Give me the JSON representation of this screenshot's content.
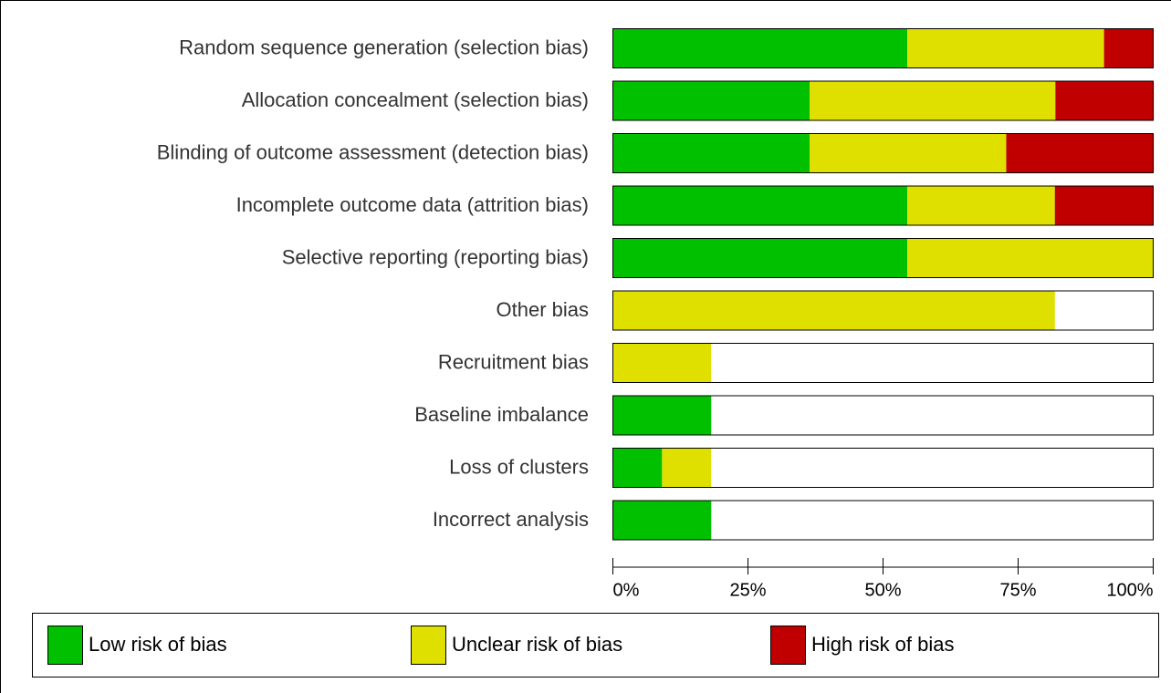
{
  "chart_data": {
    "type": "stacked-bar-horizontal",
    "categories": [
      "Random sequence generation (selection bias)",
      "Allocation concealment (selection bias)",
      "Blinding of outcome assessment (detection bias)",
      "Incomplete outcome data (attrition bias)",
      "Selective reporting (reporting bias)",
      "Other bias",
      "Recruitment bias",
      "Baseline imbalance",
      "Loss of clusters",
      "Incorrect analysis"
    ],
    "series": [
      {
        "name": "Low risk of bias",
        "color": "#00c000",
        "values": [
          54.5,
          36.4,
          36.4,
          54.5,
          54.5,
          0,
          0,
          18.2,
          9.1,
          18.2
        ]
      },
      {
        "name": "Unclear risk of bias",
        "color": "#e0e000",
        "values": [
          36.4,
          45.5,
          36.4,
          27.3,
          45.5,
          81.8,
          18.2,
          0,
          9.1,
          0
        ]
      },
      {
        "name": "High risk of bias",
        "color": "#c00000",
        "values": [
          9.1,
          18.2,
          27.3,
          18.2,
          0,
          0,
          0,
          0,
          0,
          0
        ]
      }
    ],
    "xlim": [
      0,
      100
    ],
    "xticks": [
      {
        "value": 0,
        "label": "0%"
      },
      {
        "value": 25,
        "label": "25%"
      },
      {
        "value": 50,
        "label": "50%"
      },
      {
        "value": 75,
        "label": "75%"
      },
      {
        "value": 100,
        "label": "100%"
      }
    ]
  }
}
